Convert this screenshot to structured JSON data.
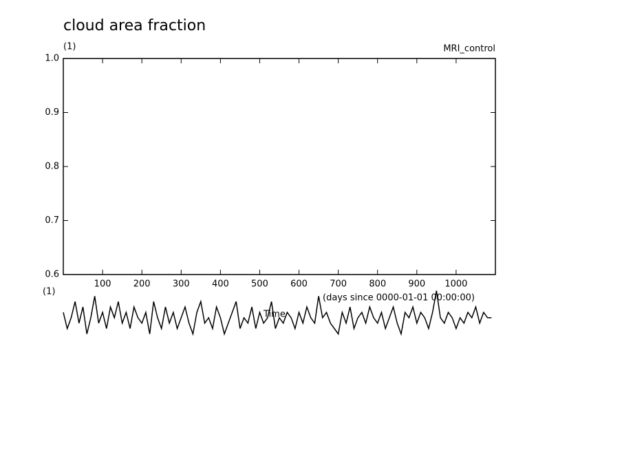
{
  "chart_data": {
    "type": "line",
    "title": "cloud area fraction",
    "y_unit": "(1)",
    "subtitle": "MRI_control",
    "lower_unit": "(1)",
    "x_unit": "(days since 0000-01-01 00:00:00)",
    "x_label": "Time",
    "xlim": [
      0,
      1100
    ],
    "xticks": [
      100,
      200,
      300,
      400,
      500,
      600,
      700,
      800,
      900,
      1000
    ],
    "ylim": [
      0.6,
      1.0
    ],
    "yticks": [
      {
        "value": 0.6,
        "label": "0.6"
      },
      {
        "value": 0.7,
        "label": "0.7"
      },
      {
        "value": 0.8,
        "label": "0.8"
      },
      {
        "value": 0.9,
        "label": "0.9"
      },
      {
        "value": 1,
        "label": "1.0"
      }
    ],
    "series": [
      {
        "color": "#000000",
        "x": [
          0,
          10,
          20,
          30,
          40,
          50,
          60,
          70,
          80,
          90,
          100,
          110,
          120,
          130,
          140,
          150,
          160,
          170,
          180,
          190,
          200,
          210,
          220,
          230,
          240,
          250,
          260,
          270,
          280,
          290,
          300,
          310,
          320,
          330,
          340,
          350,
          360,
          370,
          380,
          390,
          400,
          410,
          420,
          430,
          440,
          450,
          460,
          470,
          480,
          490,
          500,
          510,
          520,
          530,
          540,
          550,
          560,
          570,
          580,
          590,
          600,
          610,
          620,
          630,
          640,
          650,
          660,
          670,
          680,
          690,
          700,
          710,
          720,
          730,
          740,
          750,
          760,
          770,
          780,
          790,
          800,
          810,
          820,
          830,
          840,
          850,
          860,
          870,
          880,
          890,
          900,
          910,
          920,
          930,
          940,
          950,
          960,
          970,
          980,
          990,
          1000,
          1010,
          1020,
          1030,
          1040,
          1050,
          1060,
          1070,
          1080,
          1090
        ],
        "values": [
          0.53,
          0.5,
          0.52,
          0.55,
          0.51,
          0.54,
          0.49,
          0.52,
          0.56,
          0.51,
          0.53,
          0.5,
          0.54,
          0.52,
          0.55,
          0.51,
          0.53,
          0.5,
          0.54,
          0.52,
          0.51,
          0.53,
          0.49,
          0.55,
          0.52,
          0.5,
          0.54,
          0.51,
          0.53,
          0.5,
          0.52,
          0.54,
          0.51,
          0.49,
          0.53,
          0.55,
          0.51,
          0.52,
          0.5,
          0.54,
          0.52,
          0.49,
          0.51,
          0.53,
          0.55,
          0.5,
          0.52,
          0.51,
          0.54,
          0.5,
          0.53,
          0.51,
          0.52,
          0.55,
          0.5,
          0.52,
          0.51,
          0.53,
          0.52,
          0.5,
          0.53,
          0.51,
          0.54,
          0.52,
          0.51,
          0.56,
          0.52,
          0.53,
          0.51,
          0.5,
          0.49,
          0.53,
          0.51,
          0.54,
          0.5,
          0.52,
          0.53,
          0.51,
          0.54,
          0.52,
          0.51,
          0.53,
          0.5,
          0.52,
          0.54,
          0.51,
          0.49,
          0.53,
          0.52,
          0.54,
          0.51,
          0.53,
          0.52,
          0.5,
          0.53,
          0.57,
          0.52,
          0.51,
          0.53,
          0.52,
          0.5,
          0.52,
          0.51,
          0.53,
          0.52,
          0.54,
          0.51,
          0.53,
          0.52,
          0.52
        ]
      }
    ]
  }
}
